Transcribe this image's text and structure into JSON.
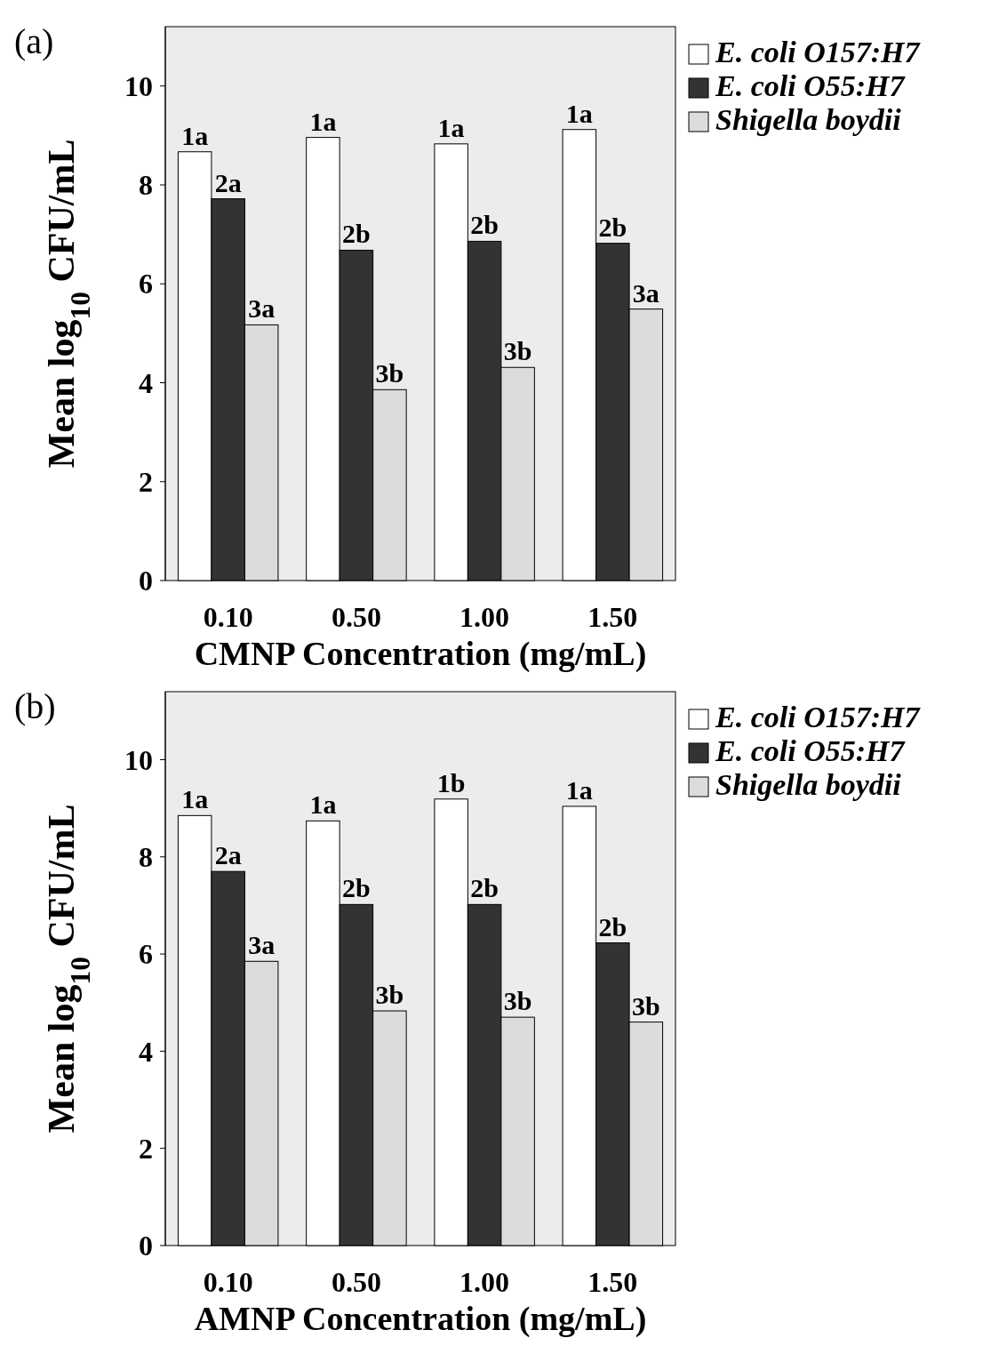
{
  "chart_data": [
    {
      "type": "bar",
      "title": "(a)",
      "xlabel": "CMNP Concentration (mg/mL)",
      "ylabel": "Mean log$_{10}$ CFU/mL",
      "categories": [
        "0.10",
        "0.50",
        "1.00",
        "1.50"
      ],
      "series": [
        {
          "name": "E. coli O157:H7",
          "color": "#ffffff",
          "values": [
            8.67,
            8.96,
            8.83,
            9.12
          ]
        },
        {
          "name": "E. coli O55:H7",
          "color": "#333333",
          "values": [
            7.72,
            6.68,
            6.86,
            6.82
          ]
        },
        {
          "name": "Shigella boydii",
          "color": "#dcdcdc",
          "values": [
            5.17,
            3.86,
            4.31,
            5.49
          ]
        }
      ],
      "ylim": [
        0,
        11.2
      ],
      "yticks": [
        0,
        2,
        4,
        6,
        8,
        10
      ],
      "grid": false,
      "legend": "top right",
      "annotations": [
        "1a",
        "2a",
        "3a",
        "1a",
        "2b",
        "3b",
        "1a",
        "2b",
        "3b",
        "1a",
        "2b",
        "3a"
      ]
    },
    {
      "type": "bar",
      "title": "(b)",
      "xlabel": "AMNP Concentration (mg/mL)",
      "ylabel": "Mean log$_{10}$ CFU/mL",
      "categories": [
        "0.10",
        "0.50",
        "1.00",
        "1.50"
      ],
      "series": [
        {
          "name": "E. coli O157:H7",
          "color": "#ffffff",
          "values": [
            8.85,
            8.74,
            9.19,
            9.04
          ]
        },
        {
          "name": "E. coli O55:H7",
          "color": "#333333",
          "values": [
            7.7,
            7.02,
            7.02,
            6.23
          ]
        },
        {
          "name": "Shigella boydii",
          "color": "#dcdcdc",
          "values": [
            5.85,
            4.83,
            4.7,
            4.6
          ]
        }
      ],
      "ylim": [
        0,
        11.4
      ],
      "yticks": [
        0,
        2,
        4,
        6,
        8,
        10
      ],
      "grid": false,
      "legend": "top right",
      "annotations": [
        "1a",
        "2a",
        "3a",
        "1a",
        "2b",
        "3b",
        "1b",
        "2b",
        "3b",
        "1a",
        "2b",
        "3b"
      ]
    }
  ]
}
